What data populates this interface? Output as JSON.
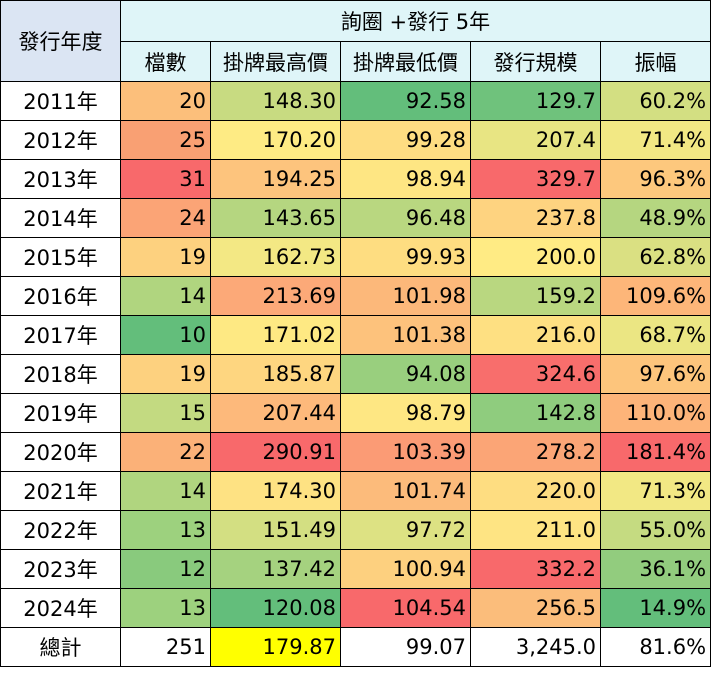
{
  "table": {
    "group_label": "發行年度",
    "group_title": "詢圈 +發行 5年",
    "columns": [
      "檔數",
      "掛牌最高價",
      "掛牌最低價",
      "發行規模",
      "振幅"
    ],
    "rows": [
      [
        "2011年",
        "20",
        "148.30",
        "92.58",
        "129.7",
        "60.2%"
      ],
      [
        "2012年",
        "25",
        "170.20",
        "99.28",
        "207.4",
        "71.4%"
      ],
      [
        "2013年",
        "31",
        "194.25",
        "98.94",
        "329.7",
        "96.3%"
      ],
      [
        "2014年",
        "24",
        "143.65",
        "96.48",
        "237.8",
        "48.9%"
      ],
      [
        "2015年",
        "19",
        "162.73",
        "99.93",
        "200.0",
        "62.8%"
      ],
      [
        "2016年",
        "14",
        "213.69",
        "101.98",
        "159.2",
        "109.6%"
      ],
      [
        "2017年",
        "10",
        "171.02",
        "101.38",
        "216.0",
        "68.7%"
      ],
      [
        "2018年",
        "19",
        "185.87",
        "94.08",
        "324.6",
        "97.6%"
      ],
      [
        "2019年",
        "15",
        "207.44",
        "98.79",
        "142.8",
        "110.0%"
      ],
      [
        "2020年",
        "22",
        "290.91",
        "103.39",
        "278.2",
        "181.4%"
      ],
      [
        "2021年",
        "14",
        "174.30",
        "101.74",
        "220.0",
        "71.3%"
      ],
      [
        "2022年",
        "13",
        "151.49",
        "97.72",
        "211.0",
        "55.0%"
      ],
      [
        "2023年",
        "12",
        "137.42",
        "100.94",
        "332.2",
        "36.1%"
      ],
      [
        "2024年",
        "13",
        "120.08",
        "104.54",
        "256.5",
        "14.9%"
      ],
      [
        "總計",
        "251",
        "179.87",
        "99.07",
        "3,245.0",
        "81.6%"
      ]
    ],
    "cell_colors": [
      [
        "#fcbf7b",
        "#c8db81",
        "#63be7b",
        "#6fc27c",
        "#d3df82"
      ],
      [
        "#f9a073",
        "#feeb84",
        "#fedd82",
        "#e8e583",
        "#f2e884"
      ],
      [
        "#f8696b",
        "#fdc47d",
        "#fee683",
        "#f8696b",
        "#fdc87d"
      ],
      [
        "#fba476",
        "#b5d680",
        "#b9d780",
        "#fed380",
        "#b5d680"
      ],
      [
        "#fdd17f",
        "#f3e884",
        "#fedd81",
        "#ffeb84",
        "#dae082"
      ],
      [
        "#b0d57f",
        "#fca978",
        "#fcb87a",
        "#b9d780",
        "#fdb679"
      ],
      [
        "#63be7b",
        "#fee983",
        "#fdc27c",
        "#fee082",
        "#ebe683"
      ],
      [
        "#fdd17f",
        "#fed680",
        "#99cf7e",
        "#f86e6c",
        "#fdc57c"
      ],
      [
        "#c3da81",
        "#fdb97b",
        "#fee783",
        "#8fcc7e",
        "#fdb479"
      ],
      [
        "#fbb178",
        "#f8696b",
        "#fb9b75",
        "#fba576",
        "#f8696b"
      ],
      [
        "#b0d57f",
        "#fee283",
        "#fcbb7b",
        "#fedd81",
        "#f2e884"
      ],
      [
        "#9dd17e",
        "#d3df82",
        "#dde283",
        "#fee483",
        "#c5db81"
      ],
      [
        "#89ca7d",
        "#a5d27f",
        "#fdd07f",
        "#f8696b",
        "#92cc7e"
      ],
      [
        "#9dd17e",
        "#63be7b",
        "#f8696b",
        "#fbbd7b",
        "#63be7b"
      ],
      [
        "#ffffff",
        "#ffff00",
        "#ffffff",
        "#ffffff",
        "#ffffff"
      ]
    ]
  }
}
